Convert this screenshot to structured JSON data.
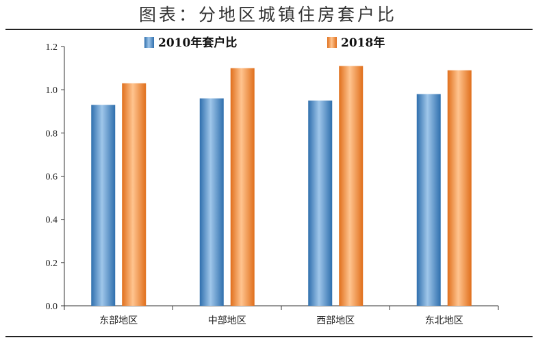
{
  "title": "图表：分地区城镇住房套户比",
  "chart_data": {
    "type": "bar",
    "categories": [
      "东部地区",
      "中部地区",
      "西部地区",
      "东北地区"
    ],
    "series": [
      {
        "name": "2010年套户比",
        "values": [
          0.93,
          0.96,
          0.95,
          0.98
        ]
      },
      {
        "name": "2018年",
        "values": [
          1.03,
          1.1,
          1.11,
          1.09
        ]
      }
    ],
    "ylim": [
      0,
      1.2
    ],
    "yticks": [
      "0.0",
      "0.2",
      "0.4",
      "0.6",
      "0.8",
      "1.0",
      "1.2"
    ],
    "legend": "top-center",
    "grid": false,
    "colors": {
      "2010": "#3f86c6",
      "2018": "#f08a3a"
    }
  }
}
